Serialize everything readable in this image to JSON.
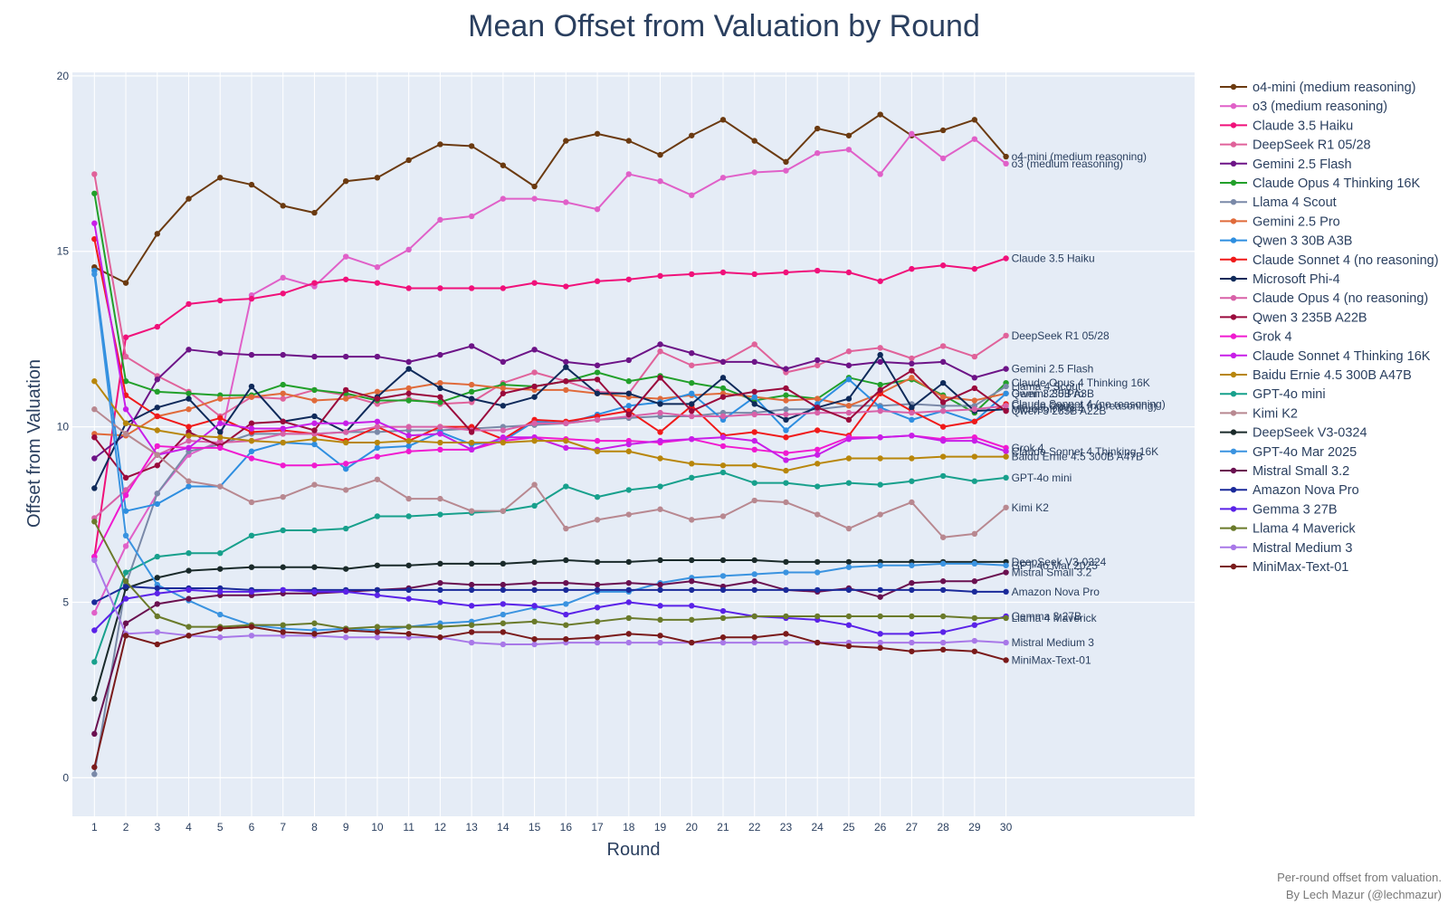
{
  "chart_data": {
    "type": "line",
    "title": "Mean Offset from Valuation by Round",
    "xlabel": "Round",
    "ylabel": "Offset from Valuation",
    "x": [
      1,
      2,
      3,
      4,
      5,
      6,
      7,
      8,
      9,
      10,
      11,
      12,
      13,
      14,
      15,
      16,
      17,
      18,
      19,
      20,
      21,
      22,
      23,
      24,
      25,
      26,
      27,
      28,
      29,
      30
    ],
    "xlim": [
      0.3,
      36
    ],
    "ylim": [
      -1.1,
      20.1
    ],
    "yticks": [
      0,
      5,
      10,
      15,
      20
    ],
    "grid": true,
    "legend_position": "right",
    "series": [
      {
        "name": "o4-mini (medium reasoning)",
        "color": "#6b3a10",
        "values": [
          14.55,
          14.1,
          15.5,
          16.5,
          17.1,
          16.9,
          16.3,
          16.1,
          17.0,
          17.1,
          17.6,
          18.05,
          18.0,
          17.45,
          16.85,
          18.15,
          18.35,
          18.15,
          17.75,
          18.3,
          18.75,
          18.15,
          17.55,
          18.5,
          18.3,
          18.9,
          18.3,
          18.45,
          18.75,
          17.7
        ]
      },
      {
        "name": "o3 (medium reasoning)",
        "color": "#e060c8",
        "values": [
          4.7,
          6.6,
          8.1,
          9.2,
          9.6,
          13.75,
          14.25,
          14.0,
          14.85,
          14.55,
          15.05,
          15.9,
          16.0,
          16.5,
          16.5,
          16.4,
          16.2,
          17.2,
          17.0,
          16.6,
          17.1,
          17.25,
          17.3,
          17.8,
          17.9,
          17.2,
          18.35,
          17.65,
          18.2,
          17.5
        ]
      },
      {
        "name": "Claude 3.5 Haiku",
        "color": "#f0117a",
        "values": [
          6.3,
          12.55,
          12.85,
          13.5,
          13.6,
          13.65,
          13.8,
          14.1,
          14.2,
          14.1,
          13.95,
          13.95,
          13.95,
          13.95,
          14.1,
          14.0,
          14.15,
          14.2,
          14.3,
          14.35,
          14.4,
          14.35,
          14.4,
          14.45,
          14.4,
          14.15,
          14.5,
          14.6,
          14.5,
          14.8
        ]
      },
      {
        "name": "DeepSeek R1 05/28",
        "color": "#e0629a",
        "values": [
          17.2,
          12.0,
          11.45,
          11.0,
          10.3,
          10.85,
          10.8,
          11.05,
          10.9,
          10.65,
          10.8,
          10.65,
          10.7,
          11.25,
          11.55,
          11.3,
          11.0,
          10.95,
          12.15,
          11.75,
          11.85,
          12.35,
          11.55,
          11.75,
          12.15,
          12.25,
          11.95,
          12.3,
          12.0,
          12.6
        ]
      },
      {
        "name": "Gemini 2.5 Flash",
        "color": "#6d1487",
        "values": [
          9.1,
          9.8,
          11.35,
          12.2,
          12.1,
          12.05,
          12.05,
          12.0,
          12.0,
          12.0,
          11.85,
          12.05,
          12.3,
          11.85,
          12.2,
          11.85,
          11.75,
          11.9,
          12.35,
          12.1,
          11.85,
          11.85,
          11.65,
          11.9,
          11.75,
          11.85,
          11.8,
          11.85,
          11.4,
          11.65
        ]
      },
      {
        "name": "Claude Opus 4 Thinking 16K",
        "color": "#22a02a",
        "values": [
          16.65,
          11.3,
          11.0,
          10.95,
          10.9,
          10.9,
          11.2,
          11.05,
          10.95,
          10.75,
          10.75,
          10.7,
          11.0,
          11.2,
          11.15,
          11.3,
          11.55,
          11.3,
          11.45,
          11.25,
          11.1,
          10.75,
          10.9,
          10.8,
          11.4,
          11.2,
          11.35,
          10.9,
          10.4,
          11.25
        ]
      },
      {
        "name": "Llama 4 Scout",
        "color": "#7a89a8",
        "values": [
          0.1,
          5.5,
          8.1,
          9.3,
          9.5,
          9.8,
          9.8,
          9.8,
          9.85,
          9.85,
          9.9,
          9.9,
          9.95,
          10.0,
          10.05,
          10.1,
          10.2,
          10.25,
          10.3,
          10.3,
          10.4,
          10.4,
          10.5,
          10.5,
          10.6,
          10.6,
          10.65,
          10.6,
          10.6,
          11.15
        ]
      },
      {
        "name": "Gemini 2.5 Pro",
        "color": "#e06a3a",
        "values": [
          9.8,
          9.75,
          10.3,
          10.5,
          10.8,
          10.85,
          10.95,
          10.75,
          10.8,
          11.0,
          11.1,
          11.25,
          11.2,
          11.1,
          11.05,
          11.05,
          10.95,
          10.85,
          10.8,
          10.9,
          10.95,
          10.85,
          10.75,
          10.8,
          10.6,
          10.95,
          11.4,
          10.85,
          10.75,
          10.95
        ]
      },
      {
        "name": "Qwen 3 30B A3B",
        "color": "#2e8ee0",
        "values": [
          14.45,
          7.6,
          7.8,
          8.3,
          8.3,
          9.3,
          9.55,
          9.5,
          8.8,
          9.4,
          9.45,
          9.85,
          9.5,
          9.6,
          10.15,
          10.1,
          10.35,
          10.6,
          10.7,
          10.95,
          10.2,
          10.85,
          9.9,
          10.65,
          11.35,
          10.55,
          10.2,
          10.45,
          10.15,
          10.95
        ]
      },
      {
        "name": "Claude Sonnet 4 (no reasoning)",
        "color": "#f01a1a",
        "values": [
          15.35,
          10.9,
          10.3,
          10.0,
          10.25,
          9.85,
          9.9,
          9.8,
          9.6,
          10.0,
          9.6,
          10.0,
          10.0,
          9.65,
          10.2,
          10.15,
          10.3,
          10.45,
          9.85,
          10.6,
          9.75,
          9.85,
          9.7,
          9.9,
          9.75,
          10.95,
          10.45,
          10.0,
          10.15,
          10.65
        ]
      },
      {
        "name": "Microsoft Phi-4",
        "color": "#0f2a5a",
        "values": [
          8.25,
          10.1,
          10.55,
          10.8,
          9.85,
          11.15,
          10.15,
          10.3,
          9.85,
          10.85,
          11.65,
          11.1,
          10.8,
          10.6,
          10.85,
          11.7,
          10.95,
          10.95,
          10.65,
          10.65,
          11.4,
          10.65,
          10.2,
          10.55,
          10.8,
          12.05,
          10.55,
          11.25,
          10.45,
          10.5
        ]
      },
      {
        "name": "Claude Opus 4 (no reasoning)",
        "color": "#d861a8",
        "values": [
          7.4,
          8.2,
          9.2,
          9.6,
          9.55,
          9.6,
          9.8,
          9.8,
          9.85,
          10.0,
          10.0,
          10.0,
          9.9,
          9.9,
          10.1,
          10.1,
          10.2,
          10.3,
          10.4,
          10.3,
          10.3,
          10.35,
          10.35,
          10.4,
          10.4,
          10.45,
          10.4,
          10.45,
          10.5,
          10.6
        ]
      },
      {
        "name": "Qwen 3 235B A22B",
        "color": "#9a0a3c",
        "values": [
          9.7,
          8.55,
          8.9,
          9.85,
          9.45,
          10.1,
          10.15,
          9.9,
          11.05,
          10.8,
          10.95,
          10.85,
          9.85,
          10.95,
          11.15,
          11.3,
          11.35,
          10.35,
          11.4,
          10.45,
          10.85,
          11.0,
          11.1,
          10.55,
          10.2,
          11.05,
          11.6,
          10.7,
          11.1,
          10.45
        ]
      },
      {
        "name": "Grok 4",
        "color": "#f01ad0",
        "values": [
          6.3,
          8.05,
          9.45,
          9.4,
          9.4,
          9.1,
          8.9,
          8.9,
          8.95,
          9.15,
          9.3,
          9.35,
          9.35,
          9.6,
          9.7,
          9.65,
          9.6,
          9.6,
          9.55,
          9.65,
          9.45,
          9.35,
          9.25,
          9.35,
          9.7,
          9.7,
          9.75,
          9.65,
          9.7,
          9.4
        ]
      },
      {
        "name": "Claude Sonnet 4 Thinking 16K",
        "color": "#c81ee8",
        "values": [
          15.8,
          10.5,
          9.2,
          9.4,
          10.1,
          9.95,
          9.95,
          10.1,
          10.1,
          10.15,
          9.75,
          9.8,
          9.35,
          9.7,
          9.7,
          9.4,
          9.35,
          9.5,
          9.6,
          9.65,
          9.7,
          9.6,
          9.05,
          9.2,
          9.65,
          9.7,
          9.75,
          9.6,
          9.6,
          9.3
        ]
      },
      {
        "name": "Baidu Ernie 4.5 300B A47B",
        "color": "#b8860b",
        "values": [
          11.3,
          10.1,
          9.9,
          9.75,
          9.7,
          9.6,
          9.55,
          9.65,
          9.55,
          9.55,
          9.6,
          9.55,
          9.55,
          9.55,
          9.6,
          9.6,
          9.3,
          9.3,
          9.1,
          8.95,
          8.9,
          8.9,
          8.75,
          8.95,
          9.1,
          9.1,
          9.1,
          9.15,
          9.15,
          9.15
        ]
      },
      {
        "name": "GPT-4o mini",
        "color": "#17a08c",
        "values": [
          3.3,
          5.85,
          6.3,
          6.4,
          6.4,
          6.9,
          7.05,
          7.05,
          7.1,
          7.45,
          7.45,
          7.5,
          7.55,
          7.6,
          7.75,
          8.3,
          8.0,
          8.2,
          8.3,
          8.55,
          8.7,
          8.4,
          8.4,
          8.3,
          8.4,
          8.35,
          8.45,
          8.6,
          8.45,
          8.55
        ]
      },
      {
        "name": "Kimi K2",
        "color": "#b88890",
        "values": [
          10.5,
          9.8,
          9.2,
          8.45,
          8.3,
          7.85,
          8.0,
          8.35,
          8.2,
          8.5,
          7.95,
          7.95,
          7.6,
          7.6,
          8.35,
          7.1,
          7.35,
          7.5,
          7.65,
          7.35,
          7.45,
          7.9,
          7.85,
          7.5,
          7.1,
          7.5,
          7.85,
          6.85,
          6.95,
          7.7
        ]
      },
      {
        "name": "DeepSeek V3-0324",
        "color": "#1a2a2a",
        "values": [
          2.25,
          5.4,
          5.7,
          5.9,
          5.95,
          6.0,
          6.0,
          6.0,
          5.95,
          6.05,
          6.05,
          6.1,
          6.1,
          6.1,
          6.15,
          6.2,
          6.15,
          6.15,
          6.2,
          6.2,
          6.2,
          6.2,
          6.15,
          6.15,
          6.15,
          6.15,
          6.15,
          6.15,
          6.15,
          6.15
        ]
      },
      {
        "name": "GPT-4o Mar 2025",
        "color": "#3a93e0",
        "values": [
          14.35,
          6.9,
          5.5,
          5.05,
          4.65,
          4.35,
          4.25,
          4.2,
          4.25,
          4.2,
          4.3,
          4.4,
          4.45,
          4.65,
          4.85,
          4.95,
          5.3,
          5.3,
          5.55,
          5.7,
          5.75,
          5.8,
          5.85,
          5.85,
          6.0,
          6.05,
          6.05,
          6.1,
          6.1,
          6.05
        ]
      },
      {
        "name": "Mistral Small 3.2",
        "color": "#6a1050",
        "values": [
          1.25,
          4.4,
          4.95,
          5.1,
          5.2,
          5.2,
          5.25,
          5.25,
          5.3,
          5.35,
          5.4,
          5.55,
          5.5,
          5.5,
          5.55,
          5.55,
          5.5,
          5.55,
          5.5,
          5.6,
          5.45,
          5.6,
          5.35,
          5.3,
          5.4,
          5.15,
          5.55,
          5.6,
          5.6,
          5.85
        ]
      },
      {
        "name": "Amazon Nova Pro",
        "color": "#1a2a9a",
        "values": [
          5.0,
          5.45,
          5.4,
          5.4,
          5.4,
          5.35,
          5.35,
          5.35,
          5.35,
          5.35,
          5.35,
          5.35,
          5.35,
          5.35,
          5.35,
          5.35,
          5.35,
          5.35,
          5.35,
          5.35,
          5.35,
          5.35,
          5.35,
          5.35,
          5.35,
          5.35,
          5.35,
          5.35,
          5.3,
          5.3
        ]
      },
      {
        "name": "Gemma 3 27B",
        "color": "#5a22e8",
        "values": [
          4.2,
          5.1,
          5.25,
          5.35,
          5.3,
          5.3,
          5.35,
          5.3,
          5.3,
          5.2,
          5.1,
          5.0,
          4.9,
          4.95,
          4.9,
          4.65,
          4.85,
          5.0,
          4.9,
          4.9,
          4.75,
          4.6,
          4.55,
          4.5,
          4.35,
          4.1,
          4.1,
          4.15,
          4.35,
          4.6
        ]
      },
      {
        "name": "Llama 4 Maverick",
        "color": "#6a7a2a",
        "values": [
          7.3,
          5.6,
          4.6,
          4.3,
          4.3,
          4.35,
          4.35,
          4.4,
          4.25,
          4.3,
          4.3,
          4.3,
          4.35,
          4.4,
          4.45,
          4.35,
          4.45,
          4.55,
          4.5,
          4.5,
          4.55,
          4.6,
          4.6,
          4.6,
          4.6,
          4.6,
          4.6,
          4.6,
          4.55,
          4.55
        ]
      },
      {
        "name": "Mistral Medium 3",
        "color": "#a878e8",
        "values": [
          6.2,
          4.1,
          4.15,
          4.05,
          4.0,
          4.05,
          4.05,
          4.05,
          4.0,
          4.0,
          4.0,
          4.0,
          3.85,
          3.8,
          3.8,
          3.85,
          3.85,
          3.85,
          3.85,
          3.85,
          3.85,
          3.85,
          3.85,
          3.85,
          3.85,
          3.85,
          3.85,
          3.85,
          3.9,
          3.85
        ]
      },
      {
        "name": "MiniMax-Text-01",
        "color": "#7a1a1a",
        "values": [
          0.3,
          4.05,
          3.8,
          4.05,
          4.25,
          4.3,
          4.15,
          4.1,
          4.2,
          4.15,
          4.1,
          4.0,
          4.15,
          4.15,
          3.95,
          3.95,
          4.0,
          4.1,
          4.05,
          3.85,
          4.0,
          4.0,
          4.1,
          3.85,
          3.75,
          3.7,
          3.6,
          3.65,
          3.6,
          3.35
        ]
      }
    ]
  },
  "footnote": {
    "line1": "Per-round offset from valuation.",
    "line2": "By Lech Mazur (@lechmazur)"
  }
}
